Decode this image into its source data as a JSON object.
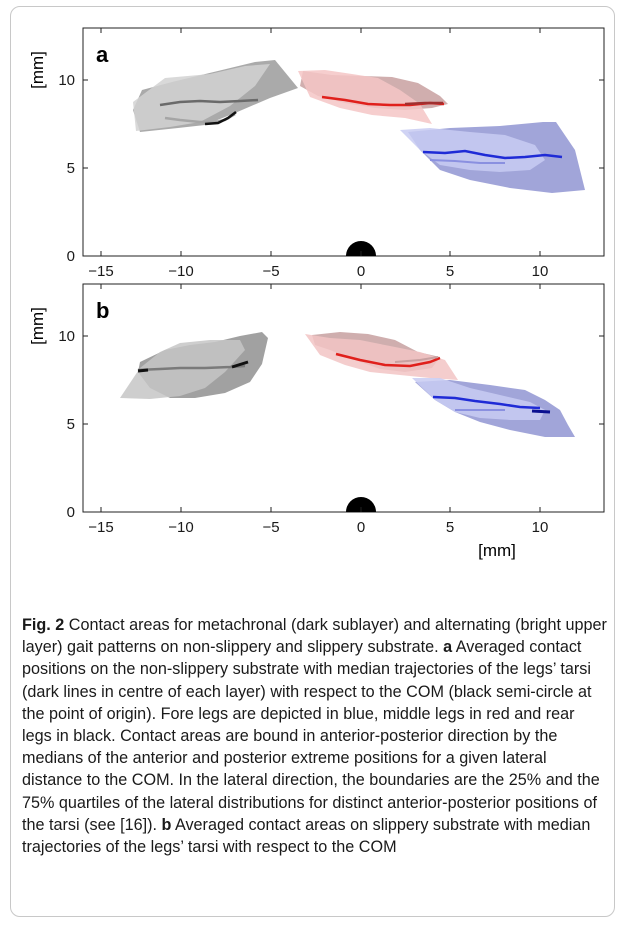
{
  "figure": {
    "panels": [
      {
        "letter": "a",
        "ylabel": "[mm]"
      },
      {
        "letter": "b",
        "ylabel": "[mm]"
      }
    ],
    "xlabel": "[mm]",
    "x_ticks": [
      "−15",
      "−10",
      "−5",
      "0",
      "5",
      "10"
    ],
    "y_ticks": [
      "0",
      "5",
      "10"
    ],
    "colors": {
      "fore": "#1f2bd6",
      "middle": "#e0201c",
      "rear": "#111111"
    }
  },
  "caption": {
    "lead": "Fig. 2",
    "intro": " Contact areas for metachronal (dark sublayer) and alternating (bright upper layer) gait patterns on non-slippery and slippery substrate. ",
    "a_letter": "a",
    "a_text": " Averaged contact positions on the non-slippery substrate with median trajectories of the legs’ tarsi (dark lines in centre of each layer) with respect to the COM (black semi-circle at the point of origin). Fore legs are depicted in blue, middle legs in red and rear legs in black. Contact areas are bound in anterior-posterior direction by the medians of the anterior and posterior extreme positions for a given lateral distance to the COM. In the lateral direction, the boundaries are the 25% and the 75% quartiles of the lateral distributions for distinct anterior-posterior positions of the tarsi (see [16]). ",
    "b_letter": "b",
    "b_text": " Averaged contact areas on slippery substrate with median trajectories of the legs’ tarsi with respect to the COM"
  }
}
